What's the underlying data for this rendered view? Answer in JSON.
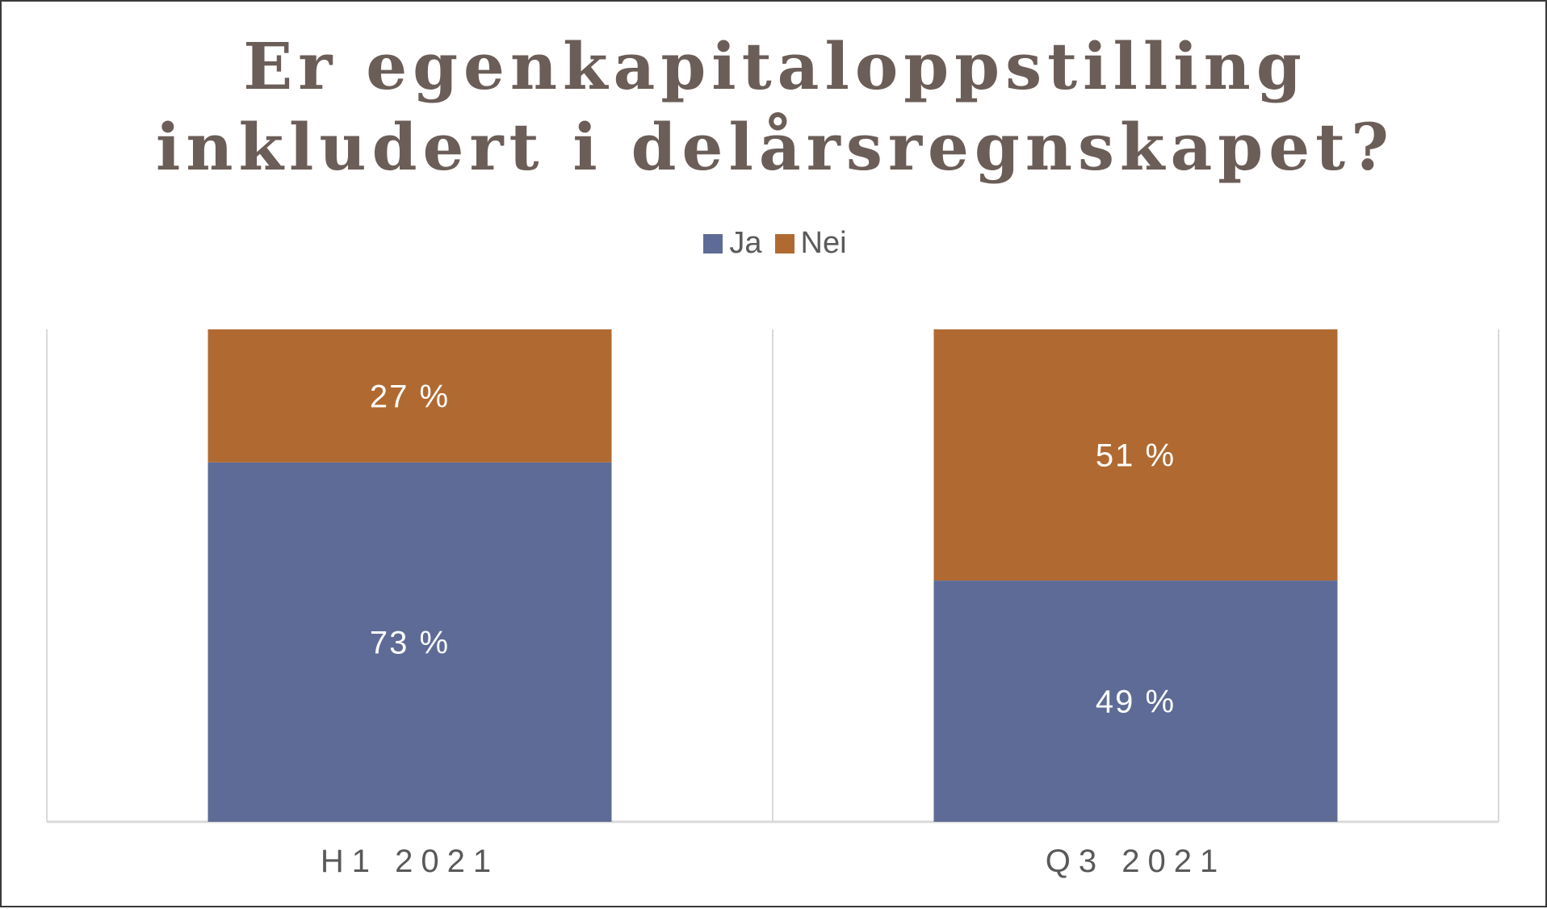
{
  "chart_data": {
    "type": "bar",
    "stacked": true,
    "title_lines": [
      "Er egenkapitaloppstilling",
      "inkludert i delårsregnskapet?"
    ],
    "categories": [
      "H1 2021",
      "Q3 2021"
    ],
    "series": [
      {
        "name": "Ja",
        "values": [
          73,
          49
        ],
        "labels": [
          "73 %",
          "49 %"
        ],
        "color": "#5e6b96"
      },
      {
        "name": "Nei",
        "values": [
          27,
          51
        ],
        "labels": [
          "27 %",
          "51 %"
        ],
        "color": "#b06a31"
      }
    ],
    "ylim": [
      0,
      100
    ],
    "legend_position": "top-center",
    "grid": false
  }
}
